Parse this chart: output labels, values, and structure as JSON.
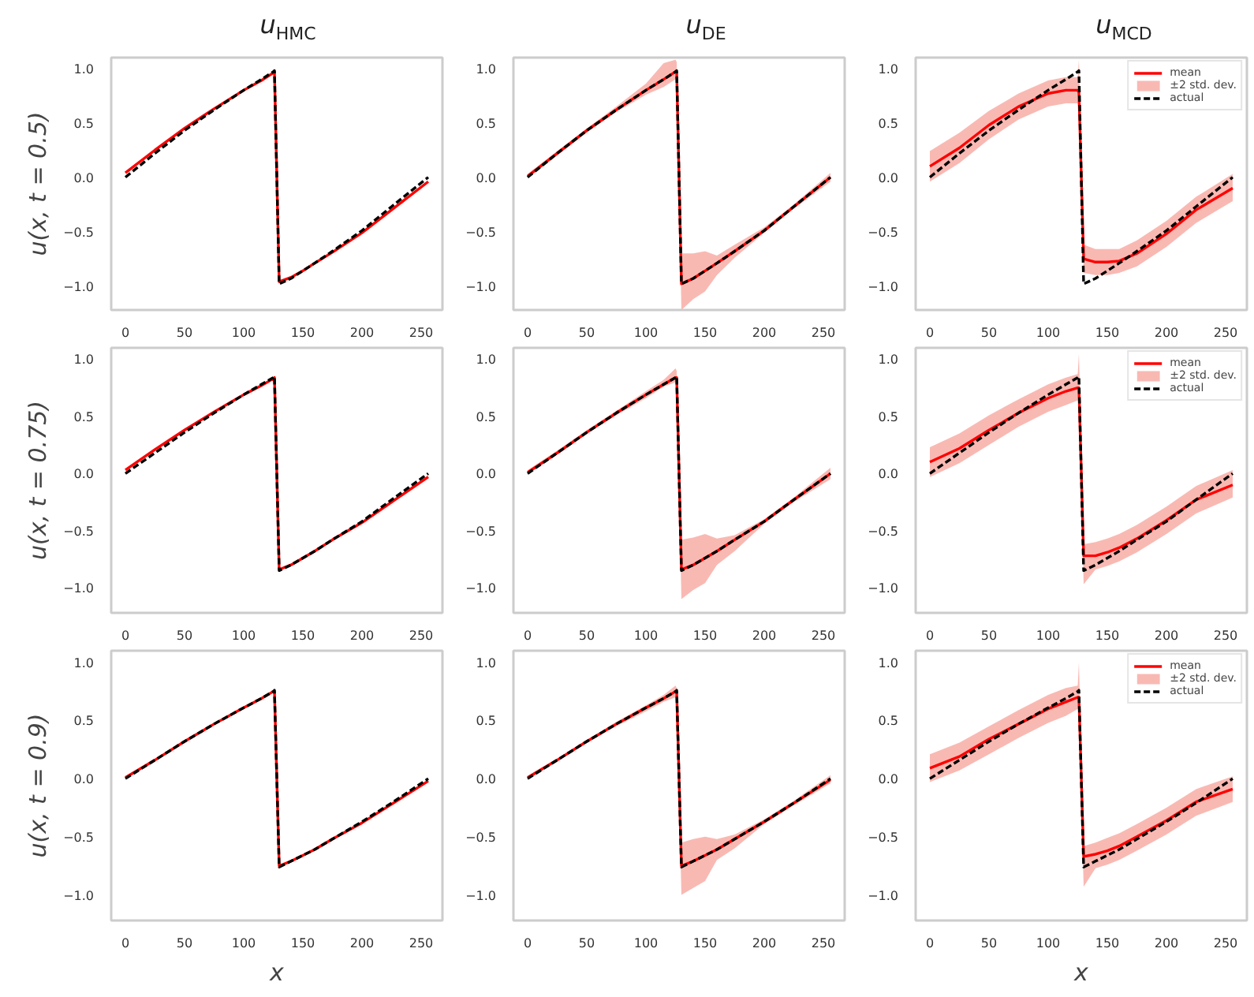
{
  "chart_data": [
    {
      "type": "line",
      "title": "u$_{HMC}$",
      "ylabel": "u(x, t = 0.5)",
      "x": [
        0,
        25,
        50,
        75,
        100,
        115,
        125,
        126,
        130,
        140,
        150,
        160,
        175,
        200,
        225,
        256
      ],
      "xlim": [
        -12,
        268
      ],
      "ylim": [
        -1.22,
        1.1
      ],
      "xticks": [
        0,
        50,
        100,
        150,
        200,
        250
      ],
      "yticks": [
        {
          "value": -1,
          "label": "−1.0"
        },
        {
          "value": -0.5,
          "label": "−0.5"
        },
        {
          "value": 0,
          "label": "0.0"
        },
        {
          "value": 0.5,
          "label": "0.5"
        },
        {
          "value": 1,
          "label": "1.0"
        }
      ],
      "series": [
        {
          "color": "#ff0000",
          "values": [
            0.04,
            0.25,
            0.45,
            0.63,
            0.8,
            0.89,
            0.96,
            0.97,
            -0.96,
            -0.92,
            -0.86,
            -0.79,
            -0.69,
            -0.51,
            -0.3,
            -0.04
          ]
        },
        {
          "color": "#000000",
          "line_style": "dashed",
          "values": [
            0,
            0.22,
            0.43,
            0.62,
            0.8,
            0.9,
            0.97,
            0.98,
            -0.98,
            -0.93,
            -0.86,
            -0.79,
            -0.68,
            -0.49,
            -0.27,
            0
          ]
        }
      ]
    },
    {
      "type": "line",
      "title": "u$_{DE}$",
      "x": [
        0,
        25,
        50,
        75,
        100,
        115,
        125,
        126,
        130,
        140,
        150,
        160,
        175,
        200,
        225,
        256
      ],
      "xlim": [
        -12,
        268
      ],
      "ylim": [
        -1.22,
        1.1
      ],
      "xticks": [
        0,
        50,
        100,
        150,
        200,
        250
      ],
      "yticks": [
        {
          "value": -1,
          "label": "−1.0"
        },
        {
          "value": -0.5,
          "label": "−0.5"
        },
        {
          "value": 0,
          "label": "0.0"
        },
        {
          "value": 0.5,
          "label": "0.5"
        },
        {
          "value": 1,
          "label": "1.0"
        }
      ],
      "series": [
        {
          "type": "area",
          "color": "#f9b9b3",
          "values": [
            null,
            null,
            null,
            null,
            null,
            null,
            null,
            null,
            null,
            null,
            null,
            null,
            null,
            null,
            null,
            null
          ],
          "lower": [
            -0.01,
            0.2,
            0.41,
            0.6,
            0.76,
            0.83,
            0.9,
            0.9,
            -1.22,
            -1.12,
            -1.05,
            -0.9,
            -0.74,
            -0.51,
            -0.29,
            -0.04
          ],
          "upper": [
            0.03,
            0.24,
            0.45,
            0.65,
            0.86,
            1.05,
            1.08,
            1.06,
            -0.7,
            -0.7,
            -0.68,
            -0.72,
            -0.62,
            -0.46,
            -0.25,
            0.04
          ]
        },
        {
          "color": "#ff0000",
          "values": [
            0.01,
            0.22,
            0.43,
            0.62,
            0.8,
            0.9,
            0.97,
            0.97,
            -0.98,
            -0.93,
            -0.86,
            -0.79,
            -0.68,
            -0.49,
            -0.27,
            0
          ]
        },
        {
          "color": "#000000",
          "line_style": "dashed",
          "values": [
            0,
            0.22,
            0.43,
            0.62,
            0.8,
            0.9,
            0.97,
            0.98,
            -0.98,
            -0.93,
            -0.86,
            -0.79,
            -0.68,
            -0.49,
            -0.27,
            0
          ]
        }
      ]
    },
    {
      "type": "line",
      "title": "u$_{MCD}$",
      "legend": "top right",
      "x": [
        0,
        25,
        50,
        75,
        100,
        115,
        125,
        126,
        130,
        140,
        150,
        160,
        175,
        200,
        225,
        256
      ],
      "xlim": [
        -12,
        268
      ],
      "ylim": [
        -1.22,
        1.1
      ],
      "xticks": [
        0,
        50,
        100,
        150,
        200,
        250
      ],
      "yticks": [
        {
          "value": -1,
          "label": "−1.0"
        },
        {
          "value": -0.5,
          "label": "−0.5"
        },
        {
          "value": 0,
          "label": "0.0"
        },
        {
          "value": 0.5,
          "label": "0.5"
        },
        {
          "value": 1,
          "label": "1.0"
        }
      ],
      "series": [
        {
          "name": "±2 std. dev.",
          "type": "area",
          "color": "#f9b9b3",
          "values": [
            null,
            null,
            null,
            null,
            null,
            null,
            null,
            null,
            null,
            null,
            null,
            null,
            null,
            null,
            null,
            null
          ],
          "lower": [
            -0.04,
            0.13,
            0.35,
            0.53,
            0.65,
            0.68,
            0.68,
            0.66,
            -0.88,
            -0.9,
            -0.9,
            -0.88,
            -0.82,
            -0.64,
            -0.42,
            -0.22
          ],
          "upper": [
            0.24,
            0.41,
            0.61,
            0.77,
            0.89,
            0.92,
            0.92,
            1.08,
            -0.62,
            -0.66,
            -0.66,
            -0.66,
            -0.58,
            -0.4,
            -0.18,
            0.03
          ]
        },
        {
          "name": "mean",
          "color": "#ff0000",
          "values": [
            0.1,
            0.27,
            0.48,
            0.65,
            0.77,
            0.8,
            0.8,
            0.78,
            -0.75,
            -0.78,
            -0.78,
            -0.77,
            -0.7,
            -0.52,
            -0.3,
            -0.1
          ]
        },
        {
          "name": "actual",
          "color": "#000000",
          "line_style": "dashed",
          "values": [
            0,
            0.22,
            0.43,
            0.62,
            0.8,
            0.9,
            0.97,
            0.98,
            -0.98,
            -0.93,
            -0.86,
            -0.79,
            -0.68,
            -0.49,
            -0.27,
            0
          ]
        }
      ]
    },
    {
      "type": "line",
      "ylabel": "u(x, t = 0.75)",
      "x": [
        0,
        25,
        50,
        75,
        100,
        115,
        125,
        126,
        130,
        140,
        150,
        160,
        175,
        200,
        225,
        256
      ],
      "xlim": [
        -12,
        268
      ],
      "ylim": [
        -1.22,
        1.1
      ],
      "xticks": [
        0,
        50,
        100,
        150,
        200,
        250
      ],
      "yticks": [
        {
          "value": -1,
          "label": "−1.0"
        },
        {
          "value": -0.5,
          "label": "−0.5"
        },
        {
          "value": 0,
          "label": "0.0"
        },
        {
          "value": 0.5,
          "label": "0.5"
        },
        {
          "value": 1,
          "label": "1.0"
        }
      ],
      "series": [
        {
          "color": "#ff0000",
          "values": [
            0.03,
            0.21,
            0.38,
            0.54,
            0.69,
            0.77,
            0.83,
            0.84,
            -0.84,
            -0.8,
            -0.74,
            -0.68,
            -0.58,
            -0.43,
            -0.25,
            -0.03
          ]
        },
        {
          "color": "#000000",
          "line_style": "dashed",
          "values": [
            0,
            0.18,
            0.36,
            0.53,
            0.69,
            0.78,
            0.84,
            0.85,
            -0.85,
            -0.8,
            -0.74,
            -0.68,
            -0.58,
            -0.42,
            -0.23,
            0
          ]
        }
      ]
    },
    {
      "type": "line",
      "x": [
        0,
        25,
        50,
        75,
        100,
        115,
        125,
        126,
        130,
        140,
        150,
        160,
        175,
        200,
        225,
        256
      ],
      "xlim": [
        -12,
        268
      ],
      "ylim": [
        -1.22,
        1.1
      ],
      "xticks": [
        0,
        50,
        100,
        150,
        200,
        250
      ],
      "yticks": [
        {
          "value": -1,
          "label": "−1.0"
        },
        {
          "value": -0.5,
          "label": "−0.5"
        },
        {
          "value": 0,
          "label": "0.0"
        },
        {
          "value": 0.5,
          "label": "0.5"
        },
        {
          "value": 1,
          "label": "1.0"
        }
      ],
      "series": [
        {
          "type": "area",
          "color": "#f9b9b3",
          "values": [
            null,
            null,
            null,
            null,
            null,
            null,
            null,
            null,
            null,
            null,
            null,
            null,
            null,
            null,
            null,
            null
          ],
          "lower": [
            -0.01,
            0.17,
            0.35,
            0.51,
            0.66,
            0.76,
            0.8,
            0.8,
            -1.1,
            -1.02,
            -0.96,
            -0.8,
            -0.68,
            -0.44,
            -0.25,
            -0.05
          ],
          "upper": [
            0.03,
            0.2,
            0.38,
            0.55,
            0.72,
            0.82,
            0.92,
            0.9,
            -0.58,
            -0.56,
            -0.53,
            -0.57,
            -0.54,
            -0.4,
            -0.21,
            0.05
          ]
        },
        {
          "color": "#ff0000",
          "values": [
            0.01,
            0.18,
            0.36,
            0.53,
            0.69,
            0.78,
            0.84,
            0.84,
            -0.84,
            -0.8,
            -0.74,
            -0.68,
            -0.58,
            -0.42,
            -0.23,
            0
          ]
        },
        {
          "color": "#000000",
          "line_style": "dashed",
          "values": [
            0,
            0.18,
            0.36,
            0.53,
            0.69,
            0.78,
            0.84,
            0.85,
            -0.85,
            -0.8,
            -0.74,
            -0.68,
            -0.58,
            -0.42,
            -0.23,
            0
          ]
        }
      ]
    },
    {
      "type": "line",
      "legend": "top right",
      "x": [
        0,
        25,
        50,
        75,
        100,
        115,
        125,
        126,
        130,
        140,
        150,
        160,
        175,
        200,
        225,
        256
      ],
      "xlim": [
        -12,
        268
      ],
      "ylim": [
        -1.22,
        1.1
      ],
      "xticks": [
        0,
        50,
        100,
        150,
        200,
        250
      ],
      "yticks": [
        {
          "value": -1,
          "label": "−1.0"
        },
        {
          "value": -0.5,
          "label": "−0.5"
        },
        {
          "value": 0,
          "label": "0.0"
        },
        {
          "value": 0.5,
          "label": "0.5"
        },
        {
          "value": 1,
          "label": "1.0"
        }
      ],
      "series": [
        {
          "name": "±2 std. dev.",
          "type": "area",
          "color": "#f9b9b3",
          "values": [
            null,
            null,
            null,
            null,
            null,
            null,
            null,
            null,
            null,
            null,
            null,
            null,
            null,
            null,
            null,
            null
          ],
          "lower": [
            -0.03,
            0.09,
            0.25,
            0.41,
            0.54,
            0.6,
            0.64,
            0.6,
            -0.97,
            -0.84,
            -0.81,
            -0.77,
            -0.69,
            -0.53,
            -0.35,
            -0.21
          ],
          "upper": [
            0.23,
            0.35,
            0.51,
            0.65,
            0.78,
            0.84,
            0.87,
            1.05,
            -0.62,
            -0.6,
            -0.57,
            -0.53,
            -0.45,
            -0.29,
            -0.11,
            0.03
          ]
        },
        {
          "name": "mean",
          "color": "#ff0000",
          "values": [
            0.1,
            0.22,
            0.38,
            0.53,
            0.66,
            0.72,
            0.75,
            0.75,
            -0.72,
            -0.72,
            -0.69,
            -0.65,
            -0.57,
            -0.41,
            -0.23,
            -0.1
          ]
        },
        {
          "name": "actual",
          "color": "#000000",
          "line_style": "dashed",
          "values": [
            0,
            0.18,
            0.36,
            0.53,
            0.69,
            0.78,
            0.84,
            0.85,
            -0.85,
            -0.8,
            -0.74,
            -0.68,
            -0.58,
            -0.42,
            -0.23,
            0
          ]
        }
      ]
    },
    {
      "type": "line",
      "ylabel": "u(x, t = 0.9)",
      "xlabel": "x",
      "x": [
        0,
        25,
        50,
        75,
        100,
        115,
        125,
        126,
        130,
        140,
        150,
        160,
        175,
        200,
        225,
        256
      ],
      "xlim": [
        -12,
        268
      ],
      "ylim": [
        -1.22,
        1.1
      ],
      "xticks": [
        0,
        50,
        100,
        150,
        200,
        250
      ],
      "yticks": [
        {
          "value": -1,
          "label": "−1.0"
        },
        {
          "value": -0.5,
          "label": "−0.5"
        },
        {
          "value": 0,
          "label": "0.0"
        },
        {
          "value": 0.5,
          "label": "0.5"
        },
        {
          "value": 1,
          "label": "1.0"
        }
      ],
      "series": [
        {
          "color": "#ff0000",
          "values": [
            0.01,
            0.16,
            0.32,
            0.47,
            0.61,
            0.69,
            0.75,
            0.75,
            -0.75,
            -0.71,
            -0.66,
            -0.61,
            -0.52,
            -0.38,
            -0.22,
            -0.02
          ]
        },
        {
          "color": "#000000",
          "line_style": "dashed",
          "values": [
            0,
            0.16,
            0.32,
            0.47,
            0.61,
            0.69,
            0.75,
            0.76,
            -0.76,
            -0.71,
            -0.66,
            -0.61,
            -0.52,
            -0.37,
            -0.21,
            0
          ]
        }
      ]
    },
    {
      "type": "line",
      "x": [
        0,
        25,
        50,
        75,
        100,
        115,
        125,
        126,
        130,
        140,
        150,
        160,
        175,
        200,
        225,
        256
      ],
      "xlim": [
        -12,
        268
      ],
      "ylim": [
        -1.22,
        1.1
      ],
      "xticks": [
        0,
        50,
        100,
        150,
        200,
        250
      ],
      "yticks": [
        {
          "value": -1,
          "label": "−1.0"
        },
        {
          "value": -0.5,
          "label": "−0.5"
        },
        {
          "value": 0,
          "label": "0.0"
        },
        {
          "value": 0.5,
          "label": "0.5"
        },
        {
          "value": 1,
          "label": "1.0"
        }
      ],
      "series": [
        {
          "type": "area",
          "color": "#f9b9b3",
          "values": [
            null,
            null,
            null,
            null,
            null,
            null,
            null,
            null,
            null,
            null,
            null,
            null,
            null,
            null,
            null,
            null
          ],
          "lower": [
            -0.01,
            0.15,
            0.31,
            0.45,
            0.58,
            0.66,
            0.7,
            0.7,
            -1.0,
            -0.94,
            -0.88,
            -0.7,
            -0.6,
            -0.39,
            -0.23,
            -0.04
          ],
          "upper": [
            0.02,
            0.17,
            0.33,
            0.49,
            0.63,
            0.72,
            0.8,
            0.78,
            -0.55,
            -0.52,
            -0.5,
            -0.52,
            -0.48,
            -0.35,
            -0.19,
            0.03
          ]
        },
        {
          "color": "#ff0000",
          "values": [
            0.01,
            0.16,
            0.32,
            0.47,
            0.61,
            0.69,
            0.75,
            0.75,
            -0.75,
            -0.71,
            -0.66,
            -0.61,
            -0.52,
            -0.37,
            -0.21,
            -0.01
          ]
        },
        {
          "color": "#000000",
          "line_style": "dashed",
          "values": [
            0,
            0.16,
            0.32,
            0.47,
            0.61,
            0.69,
            0.75,
            0.76,
            -0.76,
            -0.71,
            -0.66,
            -0.61,
            -0.52,
            -0.37,
            -0.21,
            0
          ]
        }
      ]
    },
    {
      "type": "line",
      "xlabel": "x",
      "legend": "top right",
      "x": [
        0,
        25,
        50,
        75,
        100,
        115,
        125,
        126,
        130,
        140,
        150,
        160,
        175,
        200,
        225,
        256
      ],
      "xlim": [
        -12,
        268
      ],
      "ylim": [
        -1.22,
        1.1
      ],
      "xticks": [
        0,
        50,
        100,
        150,
        200,
        250
      ],
      "yticks": [
        {
          "value": -1,
          "label": "−1.0"
        },
        {
          "value": -0.5,
          "label": "−0.5"
        },
        {
          "value": 0,
          "label": "0.0"
        },
        {
          "value": 0.5,
          "label": "0.5"
        },
        {
          "value": 1,
          "label": "1.0"
        }
      ],
      "series": [
        {
          "name": "±2 std. dev.",
          "type": "area",
          "color": "#f9b9b3",
          "values": [
            null,
            null,
            null,
            null,
            null,
            null,
            null,
            null,
            null,
            null,
            null,
            null,
            null,
            null,
            null,
            null
          ],
          "lower": [
            -0.03,
            0.07,
            0.21,
            0.35,
            0.48,
            0.54,
            0.6,
            0.56,
            -0.93,
            -0.77,
            -0.74,
            -0.7,
            -0.62,
            -0.48,
            -0.32,
            -0.2
          ],
          "upper": [
            0.21,
            0.31,
            0.45,
            0.59,
            0.72,
            0.78,
            0.8,
            1.0,
            -0.58,
            -0.55,
            -0.51,
            -0.47,
            -0.39,
            -0.25,
            -0.09,
            0.02
          ]
        },
        {
          "name": "mean",
          "color": "#ff0000",
          "values": [
            0.09,
            0.19,
            0.34,
            0.47,
            0.6,
            0.66,
            0.7,
            0.7,
            -0.67,
            -0.65,
            -0.62,
            -0.58,
            -0.5,
            -0.36,
            -0.2,
            -0.09
          ]
        },
        {
          "name": "actual",
          "color": "#000000",
          "line_style": "dashed",
          "values": [
            0,
            0.16,
            0.32,
            0.47,
            0.61,
            0.69,
            0.75,
            0.76,
            -0.76,
            -0.71,
            -0.66,
            -0.61,
            -0.52,
            -0.37,
            -0.21,
            0
          ]
        }
      ]
    }
  ]
}
